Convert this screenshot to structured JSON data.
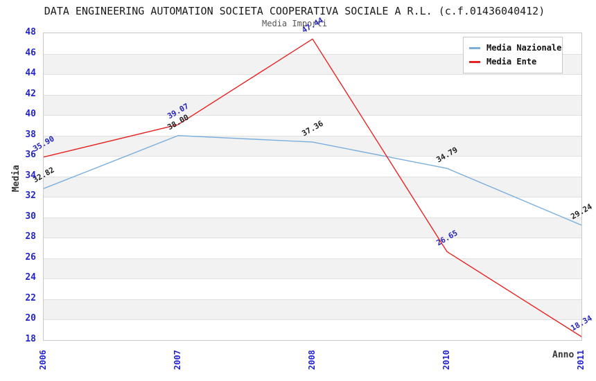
{
  "chart_data": {
    "type": "line",
    "title": "DATA ENGINEERING AUTOMATION SOCIETA COOPERATIVA SOCIALE A R.L. (c.f.01436040412)",
    "subtitle": "Media Importi",
    "xlabel": "Anno",
    "ylabel": "Media",
    "x": [
      "2006",
      "2007",
      "2008",
      "2010",
      "2011"
    ],
    "ylim": [
      18,
      48
    ],
    "ytick_step": 2,
    "grid": "horizontal-bands-alternating",
    "legend_position": "top-right",
    "colors": {
      "tick_label": "#2424cf",
      "band_gray": "#f2f2f2",
      "gridline": "#e0e0e0",
      "plot_border": "#c8c8c8"
    },
    "series": [
      {
        "name": "Media Nazionale",
        "color": "#79aede",
        "label_color": "#1f1f1f",
        "values": [
          32.82,
          38.0,
          37.36,
          34.79,
          29.24
        ],
        "labels": [
          "32.82",
          "38.00",
          "37.36",
          "34.79",
          "29.24"
        ]
      },
      {
        "name": "Media Ente",
        "color": "#e62222",
        "label_color": "#2626bb",
        "values": [
          35.9,
          39.07,
          47.44,
          26.65,
          18.34
        ],
        "labels": [
          "35.90",
          "39.07",
          "47.44",
          "26.65",
          "18.34"
        ]
      }
    ]
  }
}
